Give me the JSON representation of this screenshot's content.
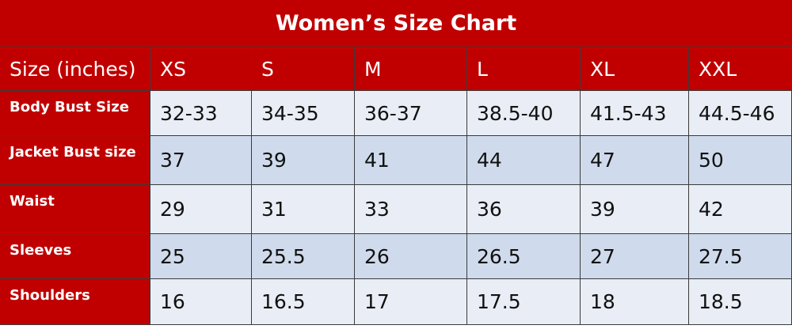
{
  "header": {
    "title": "Women’s Size Chart"
  },
  "table": {
    "columns": [
      "Size (inches)",
      "XS",
      "S",
      "M",
      "L",
      "XL",
      "XXL"
    ],
    "rows": [
      [
        "Body Bust Size",
        "32-33",
        "34-35",
        "36-37",
        "38.5-40",
        "41.5-43",
        "44.5-46"
      ],
      [
        "Jacket Bust size",
        "37",
        "39",
        "41",
        "44",
        "47",
        "50"
      ],
      [
        "Waist",
        "29",
        "31",
        "33",
        "36",
        "39",
        "42"
      ],
      [
        "Sleeves",
        "25",
        "25.5",
        "26",
        "26.5",
        "27",
        "27.5"
      ],
      [
        "Shoulders",
        "16",
        "16.5",
        "17",
        "17.5",
        "18",
        "18.5"
      ]
    ]
  }
}
